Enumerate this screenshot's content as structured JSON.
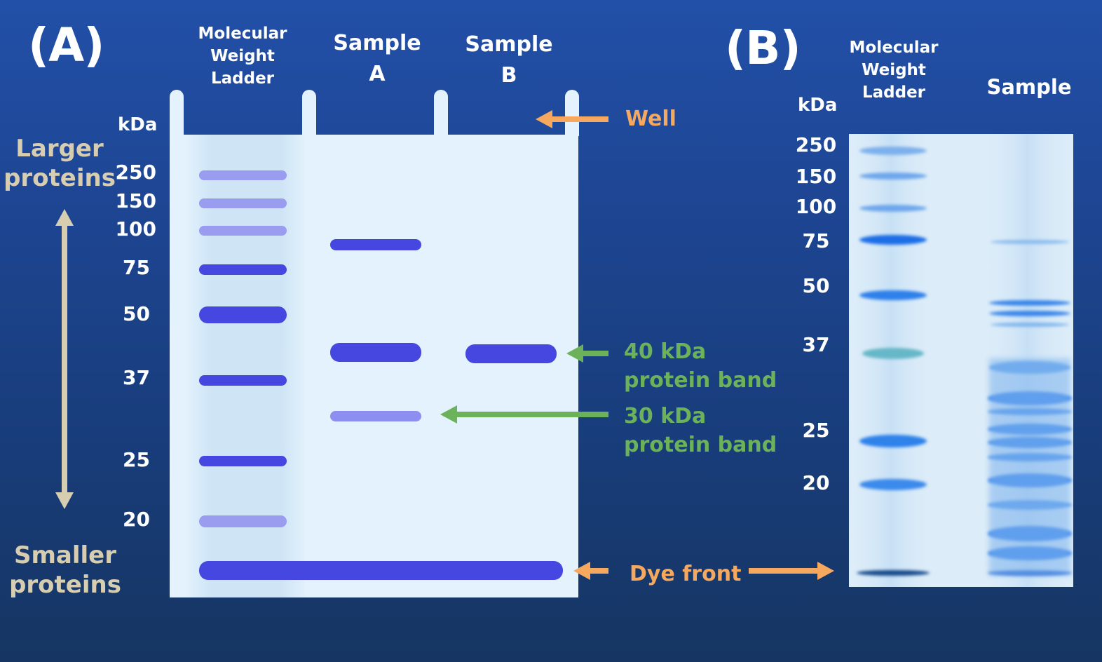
{
  "panel_a": {
    "label": "(A)",
    "ladder_header": [
      "Molecular",
      "Weight",
      "Ladder"
    ],
    "sample_a_header": [
      "Sample",
      "A"
    ],
    "sample_b_header": [
      "Sample",
      "B"
    ],
    "unit": "kDa",
    "markers": [
      "250",
      "150",
      "100",
      "75",
      "50",
      "37",
      "25",
      "20"
    ],
    "larger_label": [
      "Larger",
      "proteins"
    ],
    "smaller_label": [
      "Smaller",
      "proteins"
    ],
    "well_label": "Well",
    "band_40_label": [
      "40 kDa",
      "protein band"
    ],
    "band_30_label": [
      "30 kDa",
      "protein band"
    ],
    "dye_front_label": "Dye front"
  },
  "panel_b": {
    "label": "(B)",
    "ladder_header": [
      "Molecular",
      "Weight",
      "Ladder"
    ],
    "sample_header": "Sample",
    "unit": "kDa",
    "markers": [
      "250",
      "150",
      "100",
      "75",
      "50",
      "37",
      "25",
      "20"
    ]
  },
  "colors": {
    "background": "#1d4490",
    "gel": "#e3f2fc",
    "band_strong": "#4646e0",
    "band_faint": "#8c8ef0",
    "arrow_orange": "#f5a85e",
    "arrow_green": "#6cb25a",
    "axis_arrow": "#d7cdb0"
  }
}
